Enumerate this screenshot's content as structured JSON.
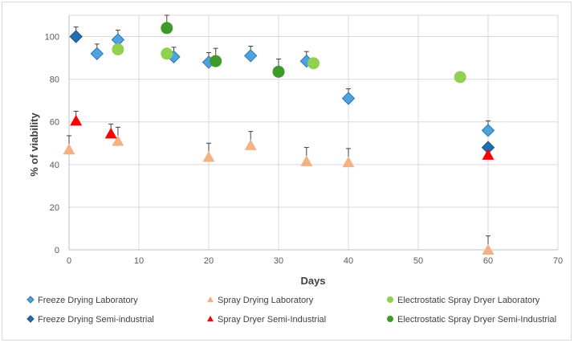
{
  "chart_data": {
    "type": "scatter",
    "title": "",
    "xlabel": "Days",
    "ylabel": "% of viability",
    "xlim": [
      0,
      70
    ],
    "ylim": [
      0,
      110
    ],
    "xticks": [
      0,
      10,
      20,
      30,
      40,
      50,
      60,
      70
    ],
    "yticks": [
      0,
      20,
      40,
      60,
      80,
      100
    ],
    "grid": "vertical and horizontal major gridlines",
    "legend_position": "bottom",
    "series": [
      {
        "name": "Freeze Drying Laboratory",
        "marker": "diamond",
        "color": "#4ea3dc",
        "points": [
          {
            "x": 4,
            "y": 92,
            "err": 4.5
          },
          {
            "x": 7,
            "y": 98.5,
            "err": 4.5
          },
          {
            "x": 15,
            "y": 90.5,
            "err": 4.5
          },
          {
            "x": 20,
            "y": 88,
            "err": 4.5
          },
          {
            "x": 26,
            "y": 91,
            "err": 4.5
          },
          {
            "x": 34,
            "y": 88.5,
            "err": 4.5
          },
          {
            "x": 40,
            "y": 71,
            "err": 4.5
          },
          {
            "x": 60,
            "y": 56,
            "err": 4.5
          }
        ]
      },
      {
        "name": "Spray Drying Laboratory",
        "marker": "triangle",
        "color": "#f4b183",
        "points": [
          {
            "x": 0,
            "y": 47,
            "err": 6.5
          },
          {
            "x": 7,
            "y": 51,
            "err": 6.5
          },
          {
            "x": 20,
            "y": 43.5,
            "err": 6.5
          },
          {
            "x": 26,
            "y": 49,
            "err": 6.5
          },
          {
            "x": 34,
            "y": 41.5,
            "err": 6.5
          },
          {
            "x": 40,
            "y": 41,
            "err": 6.5
          },
          {
            "x": 60,
            "y": 0,
            "err": 6.5
          }
        ]
      },
      {
        "name": "Electrostatic Spray Dryer Laboratory",
        "marker": "circle",
        "color": "#92d050",
        "points": [
          {
            "x": 7,
            "y": 94,
            "err": 0
          },
          {
            "x": 14,
            "y": 92,
            "err": 0
          },
          {
            "x": 35,
            "y": 87.5,
            "err": 0
          },
          {
            "x": 56,
            "y": 81,
            "err": 0
          }
        ]
      },
      {
        "name": "Freeze Drying Semi-industrial",
        "marker": "diamond",
        "color": "#1f6fb5",
        "points": [
          {
            "x": 1,
            "y": 100,
            "err": 4.5
          },
          {
            "x": 60,
            "y": 48,
            "err": 0
          }
        ]
      },
      {
        "name": "Spray Dryer Semi-Industrial",
        "marker": "triangle",
        "color": "#ff0000",
        "points": [
          {
            "x": 1,
            "y": 60.5,
            "err": 4.5
          },
          {
            "x": 6,
            "y": 54.5,
            "err": 4.5
          },
          {
            "x": 60,
            "y": 44.5,
            "err": 4.5
          }
        ]
      },
      {
        "name": "Electrostatic Spray Dryer Semi-Industrial",
        "marker": "circle",
        "color": "#3d9a2b",
        "points": [
          {
            "x": 14,
            "y": 104,
            "err": 6
          },
          {
            "x": 21,
            "y": 88.5,
            "err": 6
          },
          {
            "x": 30,
            "y": 83.5,
            "err": 6
          }
        ]
      }
    ]
  }
}
